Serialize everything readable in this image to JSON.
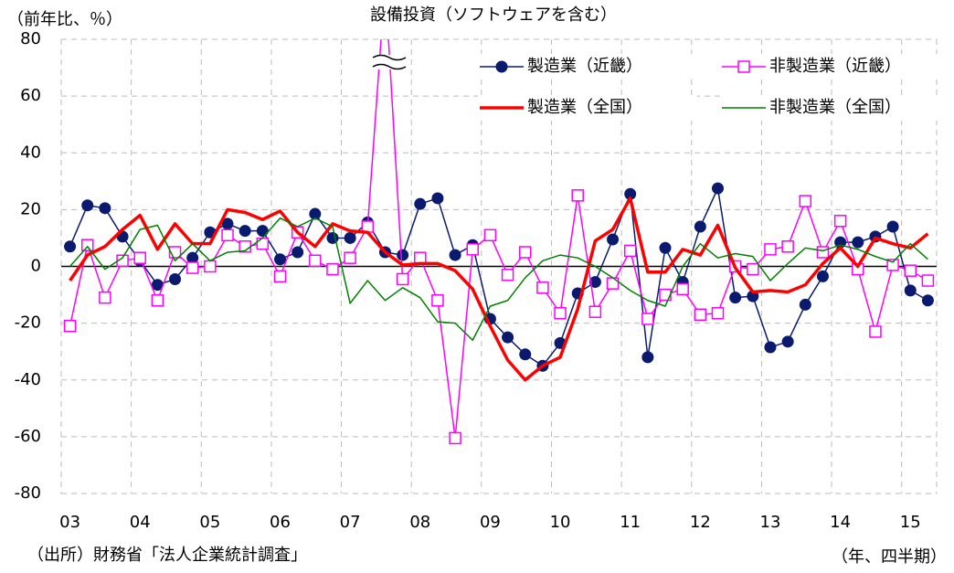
{
  "chart_data": {
    "type": "line",
    "title": "設備投資（ソフトウェアを含む）",
    "y_label": "（前年比、％）",
    "x_label": "（年、四半期）",
    "source": "（出所）財務省「法人企業統計調査」",
    "categories": [
      "03",
      null,
      null,
      null,
      "04",
      null,
      null,
      null,
      "05",
      null,
      null,
      null,
      "06",
      null,
      null,
      null,
      "07",
      null,
      null,
      null,
      "08",
      null,
      null,
      null,
      "09",
      null,
      null,
      null,
      "10",
      null,
      null,
      null,
      "11",
      null,
      null,
      null,
      "12",
      null,
      null,
      null,
      "13",
      null,
      null,
      null,
      "14",
      null,
      null,
      null,
      "15",
      null
    ],
    "ylim": [
      -80,
      80
    ],
    "yticks": [
      -80,
      -60,
      -40,
      -20,
      0,
      20,
      40,
      60,
      80
    ],
    "grid": true,
    "series": [
      {
        "name": "製造業（近畿）",
        "color": "#0a1a6e",
        "marker": "circle",
        "width": 1.5,
        "values": [
          7,
          21.5,
          20.5,
          10.5,
          2,
          -6.5,
          -4.5,
          3,
          12,
          15,
          12.5,
          12.5,
          2.5,
          5,
          18.5,
          10,
          10,
          15.5,
          5,
          4,
          22,
          24,
          4,
          7.5,
          -18.5,
          -25,
          -31,
          -35,
          -27,
          -9.5,
          -5.5,
          9.5,
          25.5,
          -32,
          6.5,
          -5.5,
          14,
          27.5,
          -11,
          -10.5,
          -28.5,
          -26.5,
          -13.5,
          -3.5,
          8.5,
          8.5,
          10.5,
          14,
          -8.5,
          -12
        ]
      },
      {
        "name": "非製造業（近畿）",
        "color": "#ff00ff",
        "marker": "square",
        "width": 1.5,
        "values": [
          -21,
          7.5,
          -11,
          2,
          3,
          -12,
          5,
          -0.5,
          0,
          11,
          7,
          8,
          -3.5,
          12,
          2,
          -1,
          3,
          14,
          100,
          -4.5,
          3,
          -12,
          -60.5,
          6,
          11,
          -3,
          5,
          -7.5,
          -16.5,
          25,
          -16,
          -6,
          5.5,
          -18.5,
          -10,
          -8,
          -17,
          -16.5,
          0,
          -1,
          6,
          7,
          23,
          5,
          16,
          -1,
          -23,
          0.5,
          -1.5,
          -5
        ]
      },
      {
        "name": "製造業（全国）",
        "color": "#ff0000",
        "marker": "none",
        "width": 3.5,
        "values": [
          -5,
          4,
          7,
          13,
          18,
          6,
          15,
          8,
          8,
          20,
          19,
          16.5,
          19.5,
          12,
          7,
          15,
          12.5,
          12,
          5,
          0.5,
          1,
          1,
          -1.5,
          -8,
          -21,
          -33,
          -40,
          -35,
          -32,
          -15,
          9,
          13,
          24,
          -2,
          -2,
          6,
          4,
          14.5,
          -0.5,
          -9,
          -8.5,
          -9,
          -6.5,
          1,
          6.5,
          0,
          10,
          8,
          6.5,
          11.5
        ]
      },
      {
        "name": "非製造業（全国）",
        "color": "#008000",
        "marker": "none",
        "width": 1.5,
        "values": [
          0,
          7,
          -1,
          3,
          13,
          14.5,
          2,
          8,
          2,
          5,
          5.5,
          10,
          17,
          14,
          17,
          14,
          -13,
          -5,
          -12,
          -7.5,
          -11,
          -19.5,
          -20,
          -26,
          -14,
          -12,
          -4,
          2,
          4,
          3,
          0,
          -4,
          -8.5,
          -12,
          -14,
          0,
          8,
          3,
          4.5,
          3.5,
          -5,
          1,
          6.5,
          5.5,
          7.5,
          6,
          3.5,
          1.5,
          8,
          2.5
        ]
      }
    ]
  }
}
